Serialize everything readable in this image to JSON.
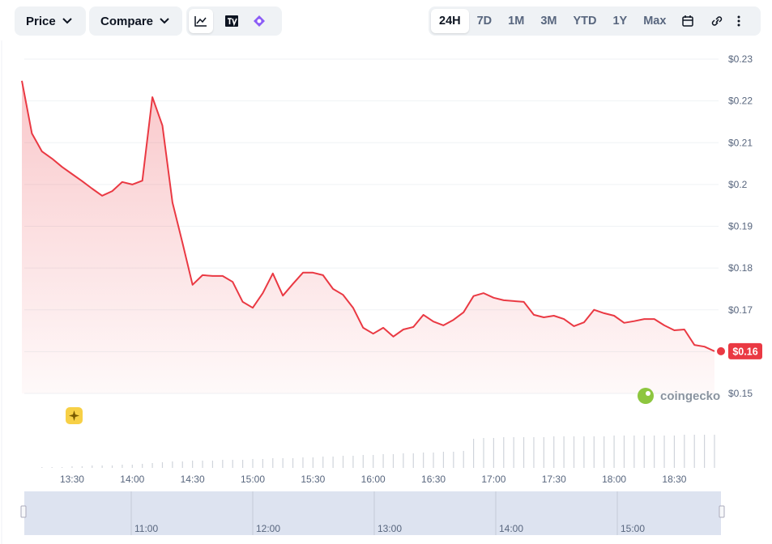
{
  "toolbar": {
    "price": "Price",
    "compare": "Compare",
    "ranges": [
      "24H",
      "7D",
      "1M",
      "3M",
      "YTD",
      "1Y",
      "Max"
    ],
    "active_range": "24H"
  },
  "chart_data": {
    "type": "line",
    "categories": [
      null,
      null,
      null,
      null,
      null,
      "13:30",
      null,
      null,
      null,
      null,
      null,
      "14:00",
      null,
      null,
      null,
      null,
      null,
      "14:30",
      null,
      null,
      null,
      null,
      null,
      "15:00",
      null,
      null,
      null,
      null,
      null,
      "15:30",
      null,
      null,
      null,
      null,
      null,
      "16:00",
      null,
      null,
      null,
      null,
      null,
      "16:30",
      null,
      null,
      null,
      null,
      null,
      "17:00",
      null,
      null,
      null,
      null,
      null,
      "17:30",
      null,
      null,
      null,
      null,
      null,
      "18:00",
      null,
      null,
      null,
      null,
      null,
      "18:30",
      null,
      null,
      null,
      null
    ],
    "series": [
      {
        "name": "Price",
        "color": "#ea3943",
        "values": [
          0.2248,
          0.2122,
          0.2079,
          0.2062,
          0.2042,
          0.2025,
          0.2008,
          0.199,
          0.1973,
          0.1984,
          0.2006,
          0.2,
          0.2009,
          0.2209,
          0.2141,
          0.1957,
          0.186,
          0.176,
          0.1783,
          0.1781,
          0.1781,
          0.1767,
          0.1719,
          0.1705,
          0.174,
          0.1787,
          0.1734,
          0.1762,
          0.1789,
          0.1789,
          0.1783,
          0.175,
          0.1736,
          0.1705,
          0.1657,
          0.1643,
          0.1657,
          0.1636,
          0.1653,
          0.1659,
          0.1688,
          0.1672,
          0.1663,
          0.1676,
          0.1694,
          0.1733,
          0.174,
          0.1729,
          0.1723,
          0.1721,
          0.1719,
          0.1688,
          0.1682,
          0.1686,
          0.1678,
          0.1661,
          0.167,
          0.17,
          0.1692,
          0.1686,
          0.1669,
          0.1673,
          0.1678,
          0.1678,
          0.1663,
          0.1651,
          0.1653,
          0.1616,
          0.1612,
          0.1601
        ]
      }
    ],
    "volume": {
      "color": "#d0d4db",
      "values": [
        0,
        0,
        1,
        1,
        1,
        2,
        2,
        3,
        3,
        3,
        4,
        4,
        5,
        6,
        7,
        8,
        8,
        9,
        9,
        9,
        10,
        10,
        10,
        11,
        11,
        12,
        12,
        12,
        13,
        13,
        14,
        14,
        15,
        15,
        16,
        16,
        17,
        17,
        18,
        18,
        19,
        19,
        20,
        20,
        21,
        36,
        37,
        37,
        38,
        38,
        38,
        38,
        38,
        39,
        39,
        39,
        39,
        39,
        39,
        40,
        40,
        40,
        40,
        40,
        40,
        40,
        41,
        41,
        41,
        41
      ],
      "lim": [
        0,
        50
      ]
    },
    "current_label": "$0.16",
    "ylim": [
      0.15,
      0.23
    ],
    "yticks": [
      {
        "value": 0.15,
        "label": "$0.15"
      },
      {
        "value": 0.16,
        "label": "$0.16"
      },
      {
        "value": 0.17,
        "label": "$0.17"
      },
      {
        "value": 0.18,
        "label": "$0.18"
      },
      {
        "value": 0.19,
        "label": "$0.19"
      },
      {
        "value": 0.2,
        "label": "$0.2"
      },
      {
        "value": 0.21,
        "label": "$0.21"
      },
      {
        "value": 0.22,
        "label": "$0.22"
      },
      {
        "value": 0.23,
        "label": "$0.23"
      }
    ],
    "grid": true,
    "watermark": "coingecko",
    "navigator_ticks": [
      "11:00",
      "12:00",
      "13:00",
      "14:00",
      "15:00"
    ]
  }
}
